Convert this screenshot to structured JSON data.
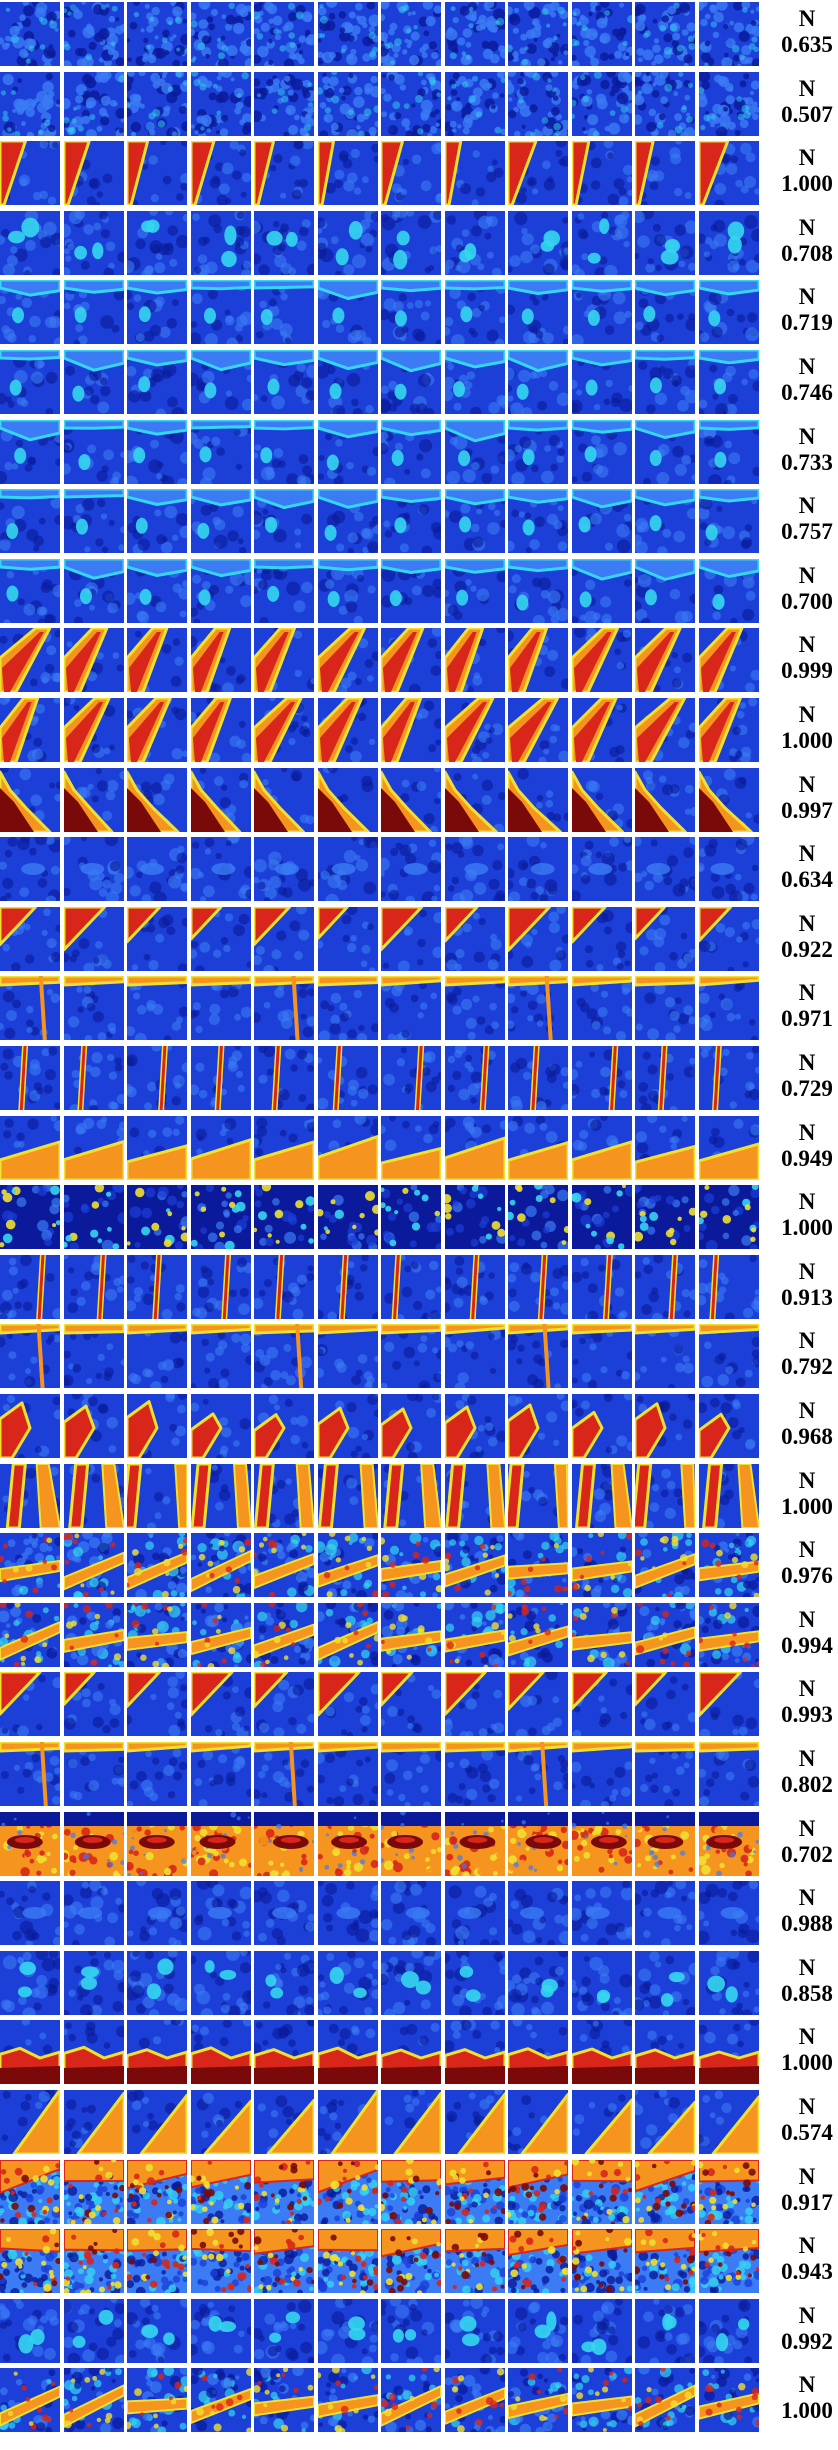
{
  "rows": [
    {
      "label": "N",
      "score": "0.635",
      "pattern": "speckle-blue"
    },
    {
      "label": "N",
      "score": "0.507",
      "pattern": "speckle-blue"
    },
    {
      "label": "N",
      "score": "1.000",
      "pattern": "red-diagonal-edge-left"
    },
    {
      "label": "N",
      "score": "0.708",
      "pattern": "cyan-blobs"
    },
    {
      "label": "N",
      "score": "0.719",
      "pattern": "cyan-top-edge"
    },
    {
      "label": "N",
      "score": "0.746",
      "pattern": "cyan-top-edge"
    },
    {
      "label": "N",
      "score": "0.733",
      "pattern": "cyan-top-edge"
    },
    {
      "label": "N",
      "score": "0.757",
      "pattern": "cyan-top-edge"
    },
    {
      "label": "N",
      "score": "0.700",
      "pattern": "cyan-top-edge"
    },
    {
      "label": "N",
      "score": "0.999",
      "pattern": "red-diagonal-band"
    },
    {
      "label": "N",
      "score": "1.000",
      "pattern": "red-diagonal-band"
    },
    {
      "label": "N",
      "score": "0.997",
      "pattern": "red-curve-bottom-left"
    },
    {
      "label": "N",
      "score": "0.634",
      "pattern": "faint-cyan"
    },
    {
      "label": "N",
      "score": "0.922",
      "pattern": "red-corner-top-left"
    },
    {
      "label": "N",
      "score": "0.971",
      "pattern": "red-top-edge"
    },
    {
      "label": "N",
      "score": "0.729",
      "pattern": "red-vertical-line"
    },
    {
      "label": "N",
      "score": "0.949",
      "pattern": "red-corner-bottom"
    },
    {
      "label": "N",
      "score": "1.000",
      "pattern": "dark-irregular"
    },
    {
      "label": "N",
      "score": "0.913",
      "pattern": "red-vertical-line"
    },
    {
      "label": "N",
      "score": "0.792",
      "pattern": "red-top-edge"
    },
    {
      "label": "N",
      "score": "0.968",
      "pattern": "red-corner-bottom-left"
    },
    {
      "label": "N",
      "score": "1.000",
      "pattern": "red-vertical-bands"
    },
    {
      "label": "N",
      "score": "0.976",
      "pattern": "mixed-texture"
    },
    {
      "label": "N",
      "score": "0.994",
      "pattern": "mixed-texture"
    },
    {
      "label": "N",
      "score": "0.993",
      "pattern": "red-corner-top-left"
    },
    {
      "label": "N",
      "score": "0.802",
      "pattern": "red-top-edge"
    },
    {
      "label": "N",
      "score": "0.702",
      "pattern": "yellow-red-band"
    },
    {
      "label": "N",
      "score": "0.988",
      "pattern": "faint-cyan"
    },
    {
      "label": "N",
      "score": "0.858",
      "pattern": "cyan-blobs"
    },
    {
      "label": "N",
      "score": "1.000",
      "pattern": "red-bottom-band"
    },
    {
      "label": "N",
      "score": "0.574",
      "pattern": "red-diagonal-edge-right"
    },
    {
      "label": "N",
      "score": "0.917",
      "pattern": "heavy-texture"
    },
    {
      "label": "N",
      "score": "0.943",
      "pattern": "heavy-texture"
    },
    {
      "label": "N",
      "score": "0.992",
      "pattern": "cyan-blobs"
    },
    {
      "label": "N",
      "score": "1.000",
      "pattern": "mixed-texture"
    }
  ],
  "tiles_per_row": 12,
  "colormap": {
    "deep": "#0a1a9a",
    "blue": "#1c3fd8",
    "light_blue": "#3b7cf5",
    "cyan": "#35d6f0",
    "yellow": "#f0e030",
    "orange": "#f5941e",
    "red": "#d8261a",
    "dark_red": "#7a0a0a"
  }
}
